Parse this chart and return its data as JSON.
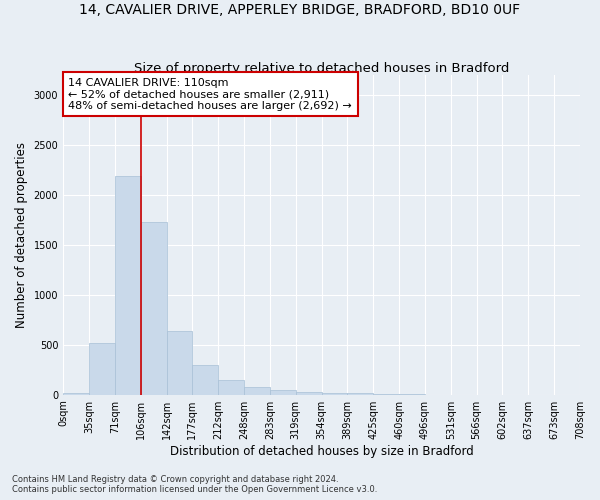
{
  "title": "14, CAVALIER DRIVE, APPERLEY BRIDGE, BRADFORD, BD10 0UF",
  "subtitle": "Size of property relative to detached houses in Bradford",
  "xlabel": "Distribution of detached houses by size in Bradford",
  "ylabel": "Number of detached properties",
  "footnote1": "Contains HM Land Registry data © Crown copyright and database right 2024.",
  "footnote2": "Contains public sector information licensed under the Open Government Licence v3.0.",
  "annotation_line1": "14 CAVALIER DRIVE: 110sqm",
  "annotation_line2": "← 52% of detached houses are smaller (2,911)",
  "annotation_line3": "48% of semi-detached houses are larger (2,692) →",
  "bar_values": [
    20,
    520,
    2190,
    1730,
    640,
    295,
    150,
    75,
    45,
    30,
    20,
    15,
    10,
    5,
    0,
    0,
    0,
    0,
    0,
    0
  ],
  "bin_labels": [
    "0sqm",
    "35sqm",
    "71sqm",
    "106sqm",
    "142sqm",
    "177sqm",
    "212sqm",
    "248sqm",
    "283sqm",
    "319sqm",
    "354sqm",
    "389sqm",
    "425sqm",
    "460sqm",
    "496sqm",
    "531sqm",
    "566sqm",
    "602sqm",
    "637sqm",
    "673sqm",
    "708sqm"
  ],
  "bar_color": "#c9d9ea",
  "bar_edge_color": "#a8c0d6",
  "annotation_box_color": "#cc0000",
  "property_line_x": 3.0,
  "property_line_color": "#cc0000",
  "ylim": [
    0,
    3200
  ],
  "yticks": [
    0,
    500,
    1000,
    1500,
    2000,
    2500,
    3000
  ],
  "background_color": "#e8eef4",
  "grid_color": "#ffffff",
  "title_fontsize": 10,
  "subtitle_fontsize": 9.5,
  "axis_label_fontsize": 8.5,
  "tick_fontsize": 7,
  "annotation_fontsize": 8,
  "footnote_fontsize": 6
}
